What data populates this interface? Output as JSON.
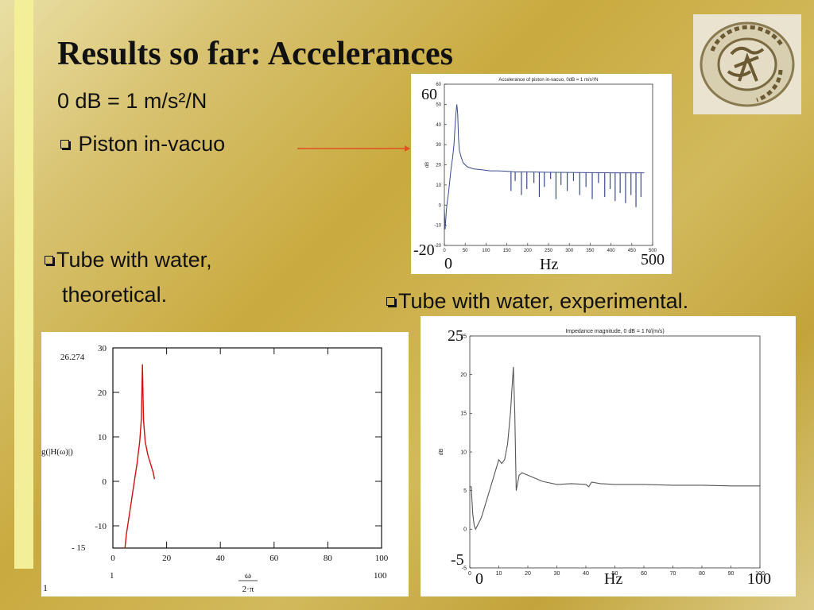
{
  "slide": {
    "title": "Results so far: Accelerances",
    "subtitle": "0 dB = 1 m/s²/N",
    "bullets": {
      "piston": "Piston in-vacuo",
      "theoretical_line1": "Tube with water,",
      "theoretical_line2": "theoretical.",
      "experimental": "Tube with water, experimental."
    },
    "arrow_color": "#e05020"
  },
  "overlays": {
    "top": {
      "ymax": "60",
      "ymin": "-20",
      "x0": "0",
      "xunit": "Hz",
      "xmax": "500"
    },
    "bottom_right": {
      "ymax": "25",
      "ymin": "-5",
      "x0": "0",
      "xunit": "Hz",
      "xmax": "100"
    }
  },
  "chart_data": [
    {
      "id": "piston",
      "type": "line",
      "title": "Accelerance of piston in-vacuo, 0dB = 1 m/s²/N",
      "xlabel": "",
      "ylabel": "dB",
      "xlim": [
        0,
        500
      ],
      "ylim": [
        -20,
        60
      ],
      "xticks": [
        "0",
        "50",
        "100",
        "150",
        "200",
        "250",
        "300",
        "350",
        "400",
        "450",
        "500"
      ],
      "yticks": [
        "-20",
        "-10",
        "0",
        "10",
        "20",
        "30",
        "40",
        "50",
        "60"
      ],
      "colors": {
        "line": "#3a4a8c"
      },
      "series": [
        {
          "x": [
            0,
            2,
            4,
            6,
            8,
            10,
            13,
            16,
            20,
            23,
            26,
            28,
            30,
            32,
            34,
            36,
            40,
            45,
            55,
            70,
            90,
            110,
            130,
            150,
            170,
            200,
            250,
            300,
            350,
            400,
            450,
            480
          ],
          "y": [
            -2,
            -12,
            -5,
            0,
            3,
            6,
            12,
            18,
            24,
            30,
            40,
            46,
            50,
            45,
            33,
            27,
            24,
            21,
            19,
            18,
            17.5,
            17,
            17,
            16.8,
            16.5,
            16.5,
            16.3,
            16.2,
            16.1,
            16,
            16,
            16
          ]
        }
      ],
      "dips": [
        {
          "x": 160,
          "y": 7
        },
        {
          "x": 170,
          "y": 12
        },
        {
          "x": 185,
          "y": 5
        },
        {
          "x": 198,
          "y": 8
        },
        {
          "x": 215,
          "y": 11
        },
        {
          "x": 228,
          "y": 4
        },
        {
          "x": 240,
          "y": 9
        },
        {
          "x": 255,
          "y": 13
        },
        {
          "x": 268,
          "y": 3
        },
        {
          "x": 280,
          "y": 10
        },
        {
          "x": 295,
          "y": 7
        },
        {
          "x": 310,
          "y": 12
        },
        {
          "x": 325,
          "y": 5
        },
        {
          "x": 340,
          "y": 9
        },
        {
          "x": 355,
          "y": 3
        },
        {
          "x": 370,
          "y": 11
        },
        {
          "x": 385,
          "y": 4
        },
        {
          "x": 398,
          "y": 8
        },
        {
          "x": 410,
          "y": 2
        },
        {
          "x": 422,
          "y": 6
        },
        {
          "x": 435,
          "y": 1
        },
        {
          "x": 448,
          "y": 5
        },
        {
          "x": 460,
          "y": -1
        },
        {
          "x": 472,
          "y": 4
        }
      ]
    },
    {
      "id": "theoretical",
      "type": "line",
      "title": "",
      "xlabel_num": "ω",
      "xlabel_den": "2·π",
      "ylabel": "g(|H(ω)|)",
      "xlim": [
        0,
        100
      ],
      "ylim": [
        -15,
        30
      ],
      "xticks": [
        "0",
        "20",
        "40",
        "60",
        "80",
        "100"
      ],
      "yticks": [
        "30",
        "20",
        "10",
        "0",
        "-10"
      ],
      "corner_labels": {
        "ymax_note": "26.274",
        "ymin": "- 15",
        "xmin_note": "1",
        "xmax": "100",
        "left_bottom": "1"
      },
      "colors": {
        "line": "#d01010"
      },
      "series": [
        {
          "x": [
            4.5,
            5,
            6,
            7,
            8,
            9,
            10,
            10.6,
            11,
            11.4,
            12,
            13,
            14,
            15,
            15.5
          ],
          "y": [
            -15,
            -12,
            -8,
            -4,
            0,
            4,
            9,
            14,
            26.3,
            14,
            9,
            6,
            4,
            2,
            0.5
          ]
        }
      ]
    },
    {
      "id": "experimental",
      "type": "line",
      "title": "Impedance magnitude, 0 dB = 1 N/(m/s)",
      "xlabel": "",
      "ylabel": "dB",
      "xlim": [
        0,
        100
      ],
      "ylim": [
        -5,
        25
      ],
      "xticks": [
        "0",
        "10",
        "20",
        "30",
        "40",
        "50",
        "60",
        "70",
        "80",
        "90",
        "100"
      ],
      "yticks": [
        "-5",
        "0",
        "5",
        "10",
        "15",
        "20",
        "25"
      ],
      "colors": {
        "line": "#555555"
      },
      "series": [
        {
          "x": [
            0,
            0.5,
            1,
            1.5,
            2,
            4,
            6,
            8,
            10,
            11,
            12,
            13,
            14,
            15,
            15.5,
            16,
            17,
            18,
            20,
            25,
            30,
            35,
            40,
            41,
            42,
            45,
            50,
            60,
            70,
            80,
            90,
            100
          ],
          "y": [
            5.5,
            5.5,
            2,
            0.5,
            0,
            1.5,
            4,
            6.5,
            9,
            8.5,
            9,
            11,
            15,
            21,
            15,
            5,
            7,
            7.3,
            7,
            6.2,
            5.8,
            5.9,
            5.8,
            5.5,
            6.1,
            5.9,
            5.8,
            5.8,
            5.7,
            5.7,
            5.6,
            5.6
          ]
        }
      ]
    }
  ]
}
